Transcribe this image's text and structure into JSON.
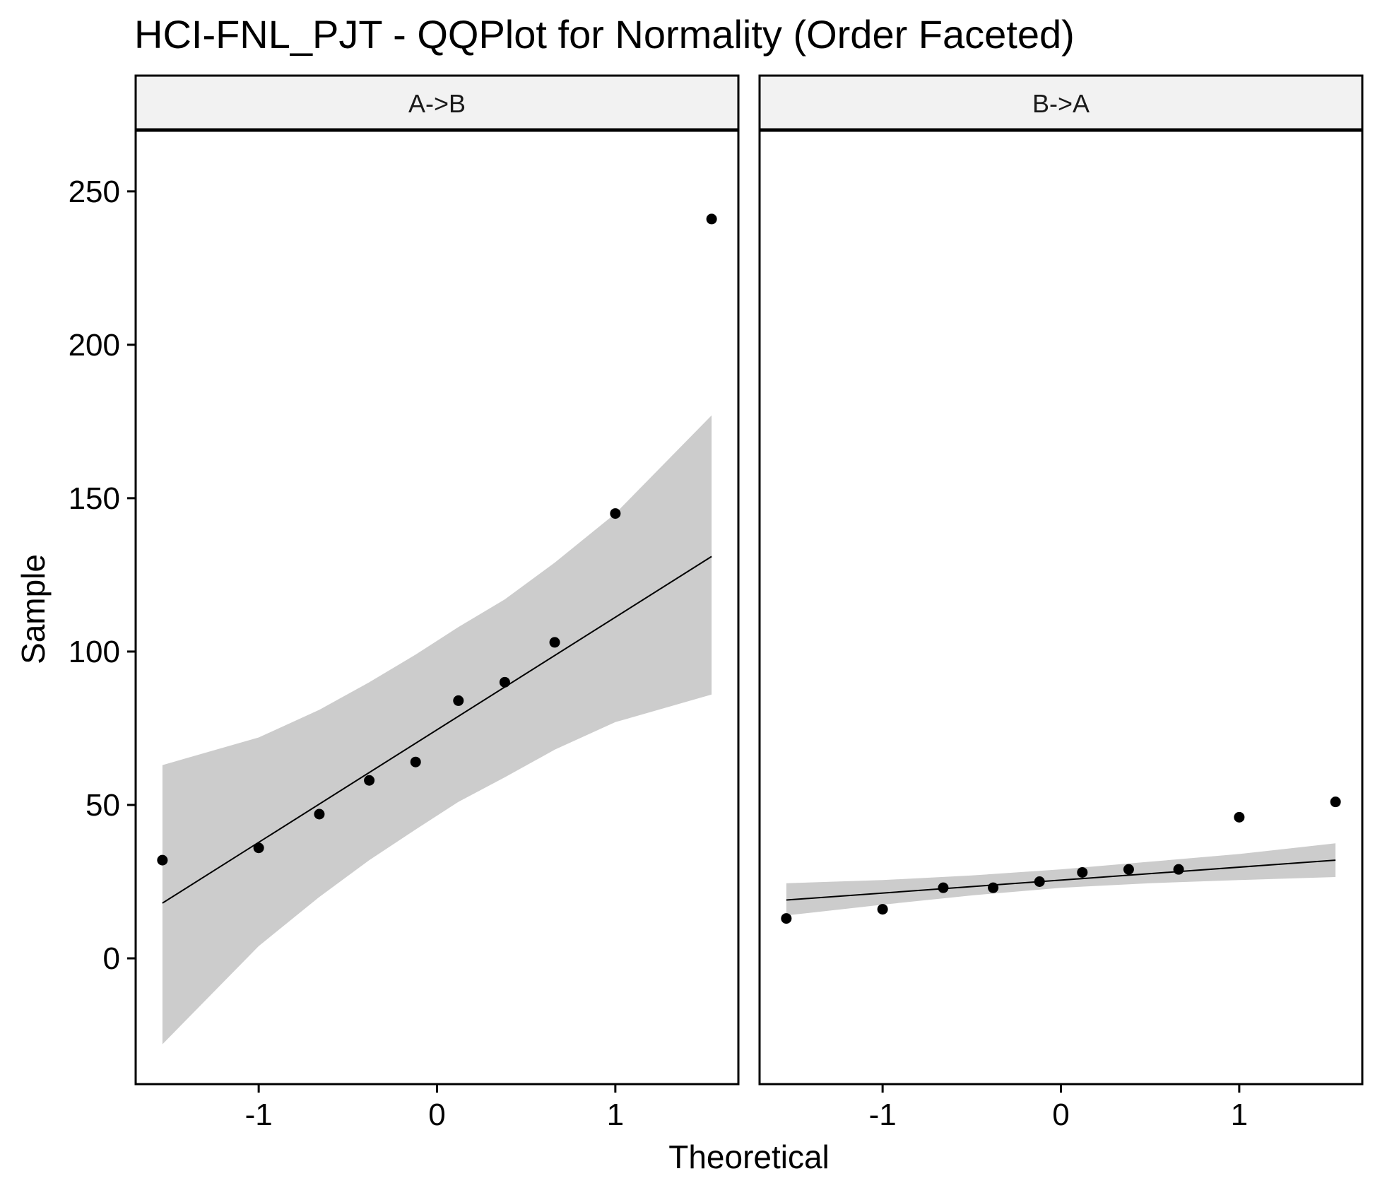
{
  "chart_data": {
    "type": "scatter",
    "title": "HCI-FNL_PJT - QQPlot for Normality (Order Faceted)",
    "xlabel": "Theoretical",
    "ylabel": "Sample",
    "xlim": [
      -1.69,
      1.69
    ],
    "ylim": [
      -41,
      270
    ],
    "x_ticks": [
      -1,
      0,
      1
    ],
    "x_tick_labels": [
      "-1",
      "0",
      "1"
    ],
    "y_ticks": [
      0,
      50,
      100,
      150,
      200,
      250
    ],
    "y_tick_labels": [
      "0",
      "50",
      "100",
      "150",
      "200",
      "250"
    ],
    "grid": false,
    "colors": {
      "points": "#000000",
      "line": "#000000",
      "band": "#cccccc",
      "strip_fill": "#f2f2f2",
      "panel_border": "#000000"
    },
    "facets": [
      {
        "strip_label": "A->B",
        "points": [
          {
            "x": -1.54,
            "y": 32
          },
          {
            "x": -1.0,
            "y": 36
          },
          {
            "x": -0.66,
            "y": 47
          },
          {
            "x": -0.38,
            "y": 58
          },
          {
            "x": -0.12,
            "y": 64
          },
          {
            "x": 0.12,
            "y": 84
          },
          {
            "x": 0.38,
            "y": 90
          },
          {
            "x": 0.66,
            "y": 103
          },
          {
            "x": 1.0,
            "y": 145
          },
          {
            "x": 1.54,
            "y": 241
          }
        ],
        "line": [
          {
            "x": -1.54,
            "y": 18
          },
          {
            "x": 1.54,
            "y": 131
          }
        ],
        "band": [
          {
            "x": -1.54,
            "lower": -28,
            "upper": 63
          },
          {
            "x": -1.0,
            "lower": 4,
            "upper": 72
          },
          {
            "x": -0.66,
            "lower": 20,
            "upper": 81
          },
          {
            "x": -0.38,
            "lower": 32,
            "upper": 90
          },
          {
            "x": -0.12,
            "lower": 42,
            "upper": 99
          },
          {
            "x": 0.12,
            "lower": 51,
            "upper": 108
          },
          {
            "x": 0.38,
            "lower": 59,
            "upper": 117
          },
          {
            "x": 0.66,
            "lower": 68,
            "upper": 129
          },
          {
            "x": 1.0,
            "lower": 77,
            "upper": 145
          },
          {
            "x": 1.54,
            "lower": 86,
            "upper": 177
          }
        ]
      },
      {
        "strip_label": "B->A",
        "points": [
          {
            "x": -1.54,
            "y": 13
          },
          {
            "x": -1.0,
            "y": 16
          },
          {
            "x": -0.66,
            "y": 23
          },
          {
            "x": -0.38,
            "y": 23
          },
          {
            "x": -0.12,
            "y": 25
          },
          {
            "x": 0.12,
            "y": 28
          },
          {
            "x": 0.38,
            "y": 29
          },
          {
            "x": 0.66,
            "y": 29
          },
          {
            "x": 1.0,
            "y": 46
          },
          {
            "x": 1.54,
            "y": 51
          }
        ],
        "line": [
          {
            "x": -1.54,
            "y": 19
          },
          {
            "x": 1.54,
            "y": 32
          }
        ],
        "band": [
          {
            "x": -1.54,
            "lower": 14,
            "upper": 24.5
          },
          {
            "x": -1.0,
            "lower": 17.5,
            "upper": 25.5
          },
          {
            "x": -0.5,
            "lower": 20.5,
            "upper": 27
          },
          {
            "x": 0.0,
            "lower": 23,
            "upper": 29
          },
          {
            "x": 0.5,
            "lower": 24.5,
            "upper": 31.5
          },
          {
            "x": 1.0,
            "lower": 25.5,
            "upper": 34
          },
          {
            "x": 1.54,
            "lower": 26.5,
            "upper": 37.5
          }
        ]
      }
    ]
  }
}
